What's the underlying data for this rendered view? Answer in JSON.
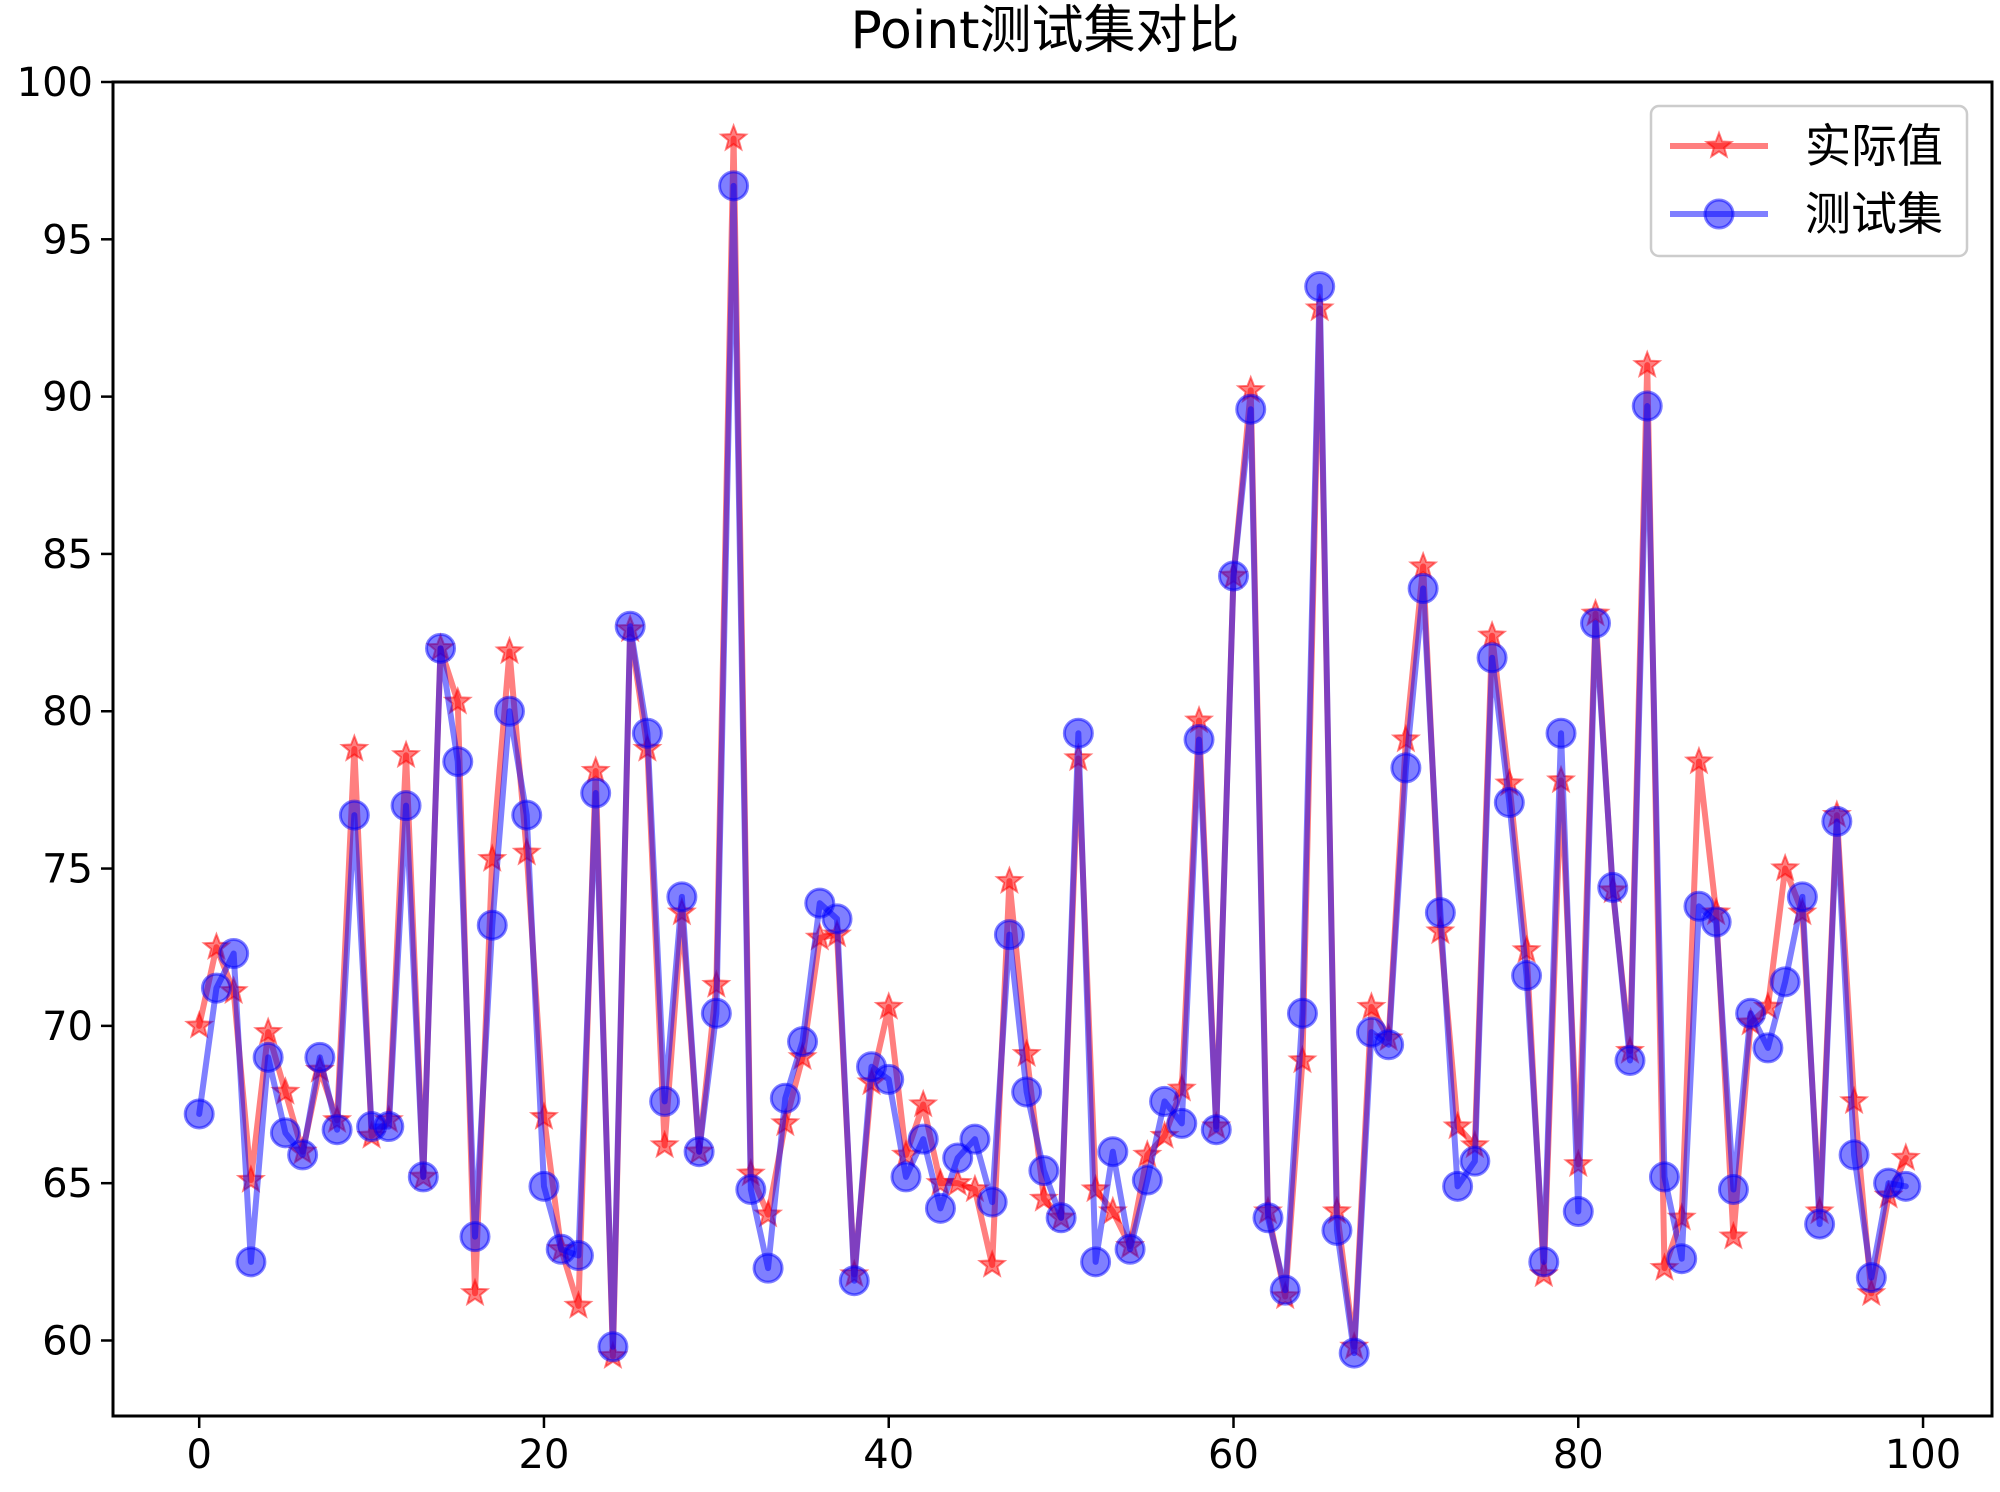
{
  "chart_data": {
    "type": "line",
    "title": "Point测试集对比",
    "xlabel": "",
    "ylabel": "",
    "xlim": [
      -5,
      104
    ],
    "ylim": [
      57.6,
      100
    ],
    "xticks": [
      0,
      20,
      40,
      60,
      80,
      100
    ],
    "yticks": [
      60,
      65,
      70,
      75,
      80,
      85,
      90,
      95,
      100
    ],
    "legend_position": "top-right",
    "grid": false,
    "series": [
      {
        "name": "实际值",
        "color": "#ff0000",
        "marker": "star",
        "values": [
          70.0,
          72.5,
          71.1,
          65.1,
          69.8,
          67.9,
          66.0,
          68.6,
          67.0,
          78.8,
          66.5,
          67.0,
          78.6,
          65.2,
          82.0,
          80.3,
          61.5,
          75.3,
          81.9,
          75.5,
          67.1,
          62.9,
          61.1,
          78.1,
          59.5,
          82.6,
          78.8,
          66.2,
          73.6,
          66.0,
          71.3,
          98.2,
          65.3,
          64.0,
          66.9,
          69.0,
          72.8,
          72.9,
          62.1,
          68.2,
          70.6,
          65.9,
          67.5,
          65.0,
          65.0,
          64.8,
          62.4,
          74.6,
          69.1,
          64.5,
          63.9,
          78.5,
          64.8,
          64.1,
          63.0,
          65.9,
          66.5,
          68.0,
          79.7,
          66.8,
          84.3,
          90.2,
          64.1,
          61.4,
          68.9,
          92.8,
          64.1,
          59.8,
          70.6,
          69.6,
          79.1,
          84.6,
          73.0,
          66.8,
          66.2,
          82.4,
          77.7,
          72.4,
          62.1,
          77.8,
          65.6,
          83.1,
          74.3,
          69.2,
          91.0,
          62.3,
          63.9,
          78.4,
          73.6,
          63.3,
          70.1,
          70.6,
          75.0,
          73.6,
          64.1,
          76.7,
          67.6,
          61.5,
          64.6,
          65.8
        ]
      },
      {
        "name": "测试集",
        "color": "#0000ff",
        "marker": "circle",
        "values": [
          67.2,
          71.2,
          72.3,
          62.5,
          69.0,
          66.6,
          65.9,
          69.0,
          66.7,
          76.7,
          66.8,
          66.8,
          77.0,
          65.2,
          82.0,
          78.4,
          63.3,
          73.2,
          80.0,
          76.7,
          64.9,
          62.9,
          62.7,
          77.4,
          59.8,
          82.7,
          79.3,
          67.6,
          74.1,
          66.0,
          70.4,
          96.7,
          64.8,
          62.3,
          67.7,
          69.5,
          73.9,
          73.4,
          61.9,
          68.7,
          68.3,
          65.2,
          66.4,
          64.2,
          65.8,
          66.4,
          64.4,
          72.9,
          67.9,
          65.4,
          63.9,
          79.3,
          62.5,
          66.0,
          62.9,
          65.1,
          67.6,
          66.9,
          79.1,
          66.7,
          84.3,
          89.6,
          63.9,
          61.6,
          70.4,
          93.5,
          63.5,
          59.6,
          69.8,
          69.4,
          78.2,
          83.9,
          73.6,
          64.9,
          65.7,
          81.7,
          77.1,
          71.6,
          62.5,
          79.3,
          64.1,
          82.8,
          74.4,
          68.9,
          89.7,
          65.2,
          62.6,
          73.8,
          73.3,
          64.8,
          70.4,
          69.3,
          71.4,
          74.1,
          63.7,
          76.5,
          65.9,
          62.0,
          65.0,
          64.9
        ]
      }
    ]
  }
}
